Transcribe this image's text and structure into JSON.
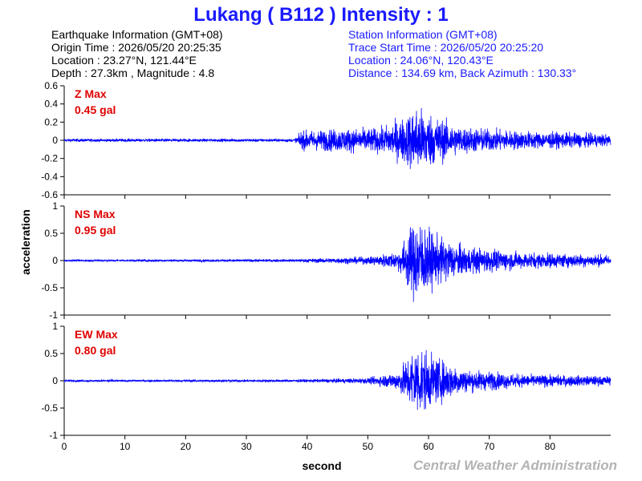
{
  "title": "Lukang ( B112 ) Intensity : 1",
  "earthquake_info": {
    "heading": "Earthquake Information (GMT+08)",
    "origin_time": "Origin Time : 2026/05/20 20:25:35",
    "location": "Location : 23.27°N, 121.44°E",
    "depth_magnitude": "Depth : 27.3km , Magnitude : 4.8"
  },
  "station_info": {
    "heading": "Station Information (GMT+08)",
    "trace_start": "Trace Start Time : 2026/05/20 20:25:20",
    "location": "Location : 24.06°N, 120.43°E",
    "distance_azimuth": "Distance : 134.69 km, Back Azimuth : 130.33°"
  },
  "credit": "Central Weather Administration",
  "colors": {
    "trace": "#0000ff",
    "max_label": "#e00000",
    "title": "#1a1aff",
    "credit": "#b3b3b3"
  },
  "chart_data": {
    "type": "line",
    "xlabel": "second",
    "ylabel": "acceleration",
    "xlim": [
      0,
      90
    ],
    "xticks": [
      0,
      10,
      20,
      30,
      40,
      50,
      60,
      70,
      80
    ],
    "grid": false,
    "panels": [
      {
        "name": "Z",
        "max_label": "Z Max",
        "max_value": "0.45 gal",
        "ylim": [
          -0.6,
          0.6
        ],
        "yticks": [
          0.6,
          0.4,
          0.2,
          0,
          -0.2,
          -0.4,
          -0.6
        ],
        "ytick_labels": [
          "0.6",
          "0.4",
          "0.2",
          "0",
          "-0.2",
          "-0.4",
          "-0.6"
        ],
        "envelope": [
          [
            0,
            0.02
          ],
          [
            38,
            0.02
          ],
          [
            39,
            0.12
          ],
          [
            45,
            0.15
          ],
          [
            52,
            0.16
          ],
          [
            56,
            0.3
          ],
          [
            58,
            0.45
          ],
          [
            61,
            0.32
          ],
          [
            65,
            0.18
          ],
          [
            75,
            0.12
          ],
          [
            90,
            0.08
          ]
        ]
      },
      {
        "name": "NS",
        "max_label": "NS Max",
        "max_value": "0.95 gal",
        "ylim": [
          -1,
          1
        ],
        "yticks": [
          1,
          0.5,
          0,
          -0.5,
          -1
        ],
        "ytick_labels": [
          "1",
          "0.5",
          "0",
          "-0.5",
          "-1"
        ],
        "envelope": [
          [
            0,
            0.02
          ],
          [
            39,
            0.03
          ],
          [
            42,
            0.05
          ],
          [
            50,
            0.08
          ],
          [
            55,
            0.2
          ],
          [
            58,
            0.95
          ],
          [
            61,
            0.55
          ],
          [
            66,
            0.3
          ],
          [
            75,
            0.18
          ],
          [
            90,
            0.12
          ]
        ]
      },
      {
        "name": "EW",
        "max_label": "EW Max",
        "max_value": "0.80 gal",
        "ylim": [
          -1,
          1
        ],
        "yticks": [
          1,
          0.5,
          0,
          -0.5,
          -1
        ],
        "ytick_labels": [
          "1",
          "0.5",
          "0",
          "-0.5",
          "-1"
        ],
        "envelope": [
          [
            0,
            0.02
          ],
          [
            40,
            0.03
          ],
          [
            50,
            0.06
          ],
          [
            55,
            0.2
          ],
          [
            58,
            0.8
          ],
          [
            61,
            0.5
          ],
          [
            66,
            0.25
          ],
          [
            75,
            0.14
          ],
          [
            90,
            0.1
          ]
        ]
      }
    ]
  }
}
